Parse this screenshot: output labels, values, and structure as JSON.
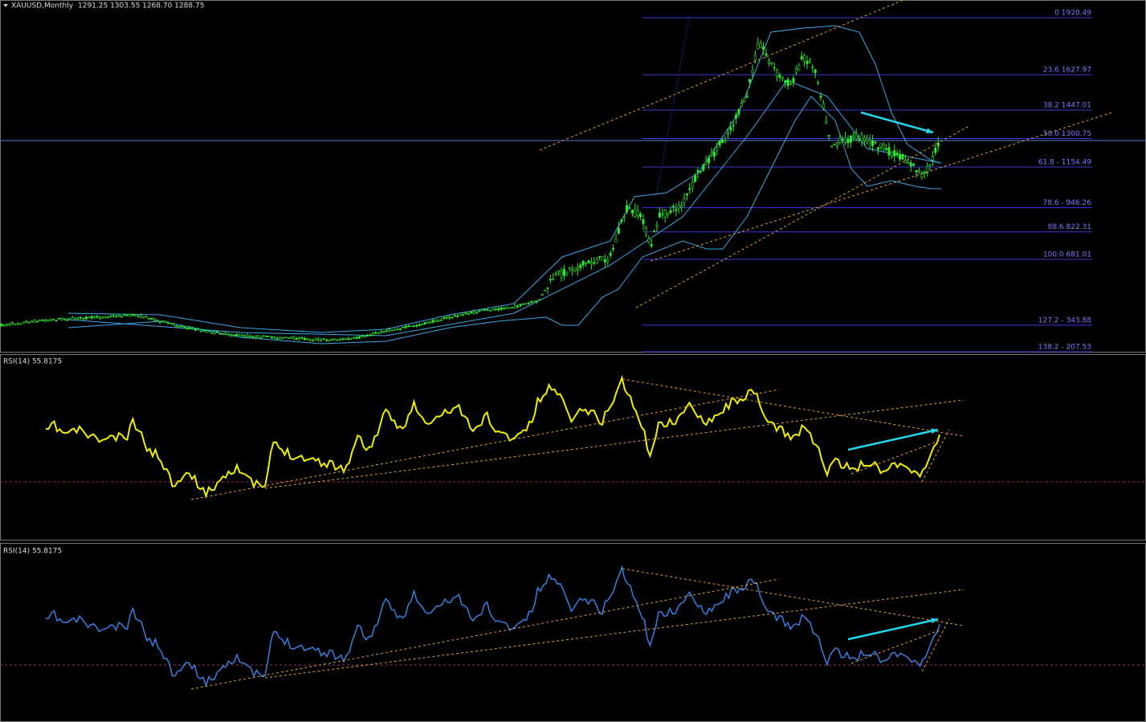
{
  "header": {
    "symbol": "XAUUSD,Monthly",
    "quote": "1291.25 1303.55 1268.70 1288.75"
  },
  "fibonacci_levels": [
    {
      "value": 1920.49,
      "label": "0 1920.49"
    },
    {
      "value": 1627.97,
      "label": "23.6 1627.97"
    },
    {
      "value": 1447.01,
      "label": "38.2 1447.01"
    },
    {
      "value": 1300.75,
      "label": "50.0 1300.75"
    },
    {
      "value": 1154.49,
      "label": "61.8 - 1154.49"
    },
    {
      "value": 946.26,
      "label": "78.6 - 946.26"
    },
    {
      "value": 822.31,
      "label": "88.6 822.31"
    },
    {
      "value": 681.01,
      "label": "100.0 681.01"
    },
    {
      "value": 343.88,
      "label": "127.2 - 343.88"
    },
    {
      "value": 207.53,
      "label": "138.2 - 207.53"
    }
  ],
  "indicator_panels": [
    {
      "label": "RSI(14) 55.8175"
    },
    {
      "label": "RSI(14) 55.8175"
    }
  ]
}
